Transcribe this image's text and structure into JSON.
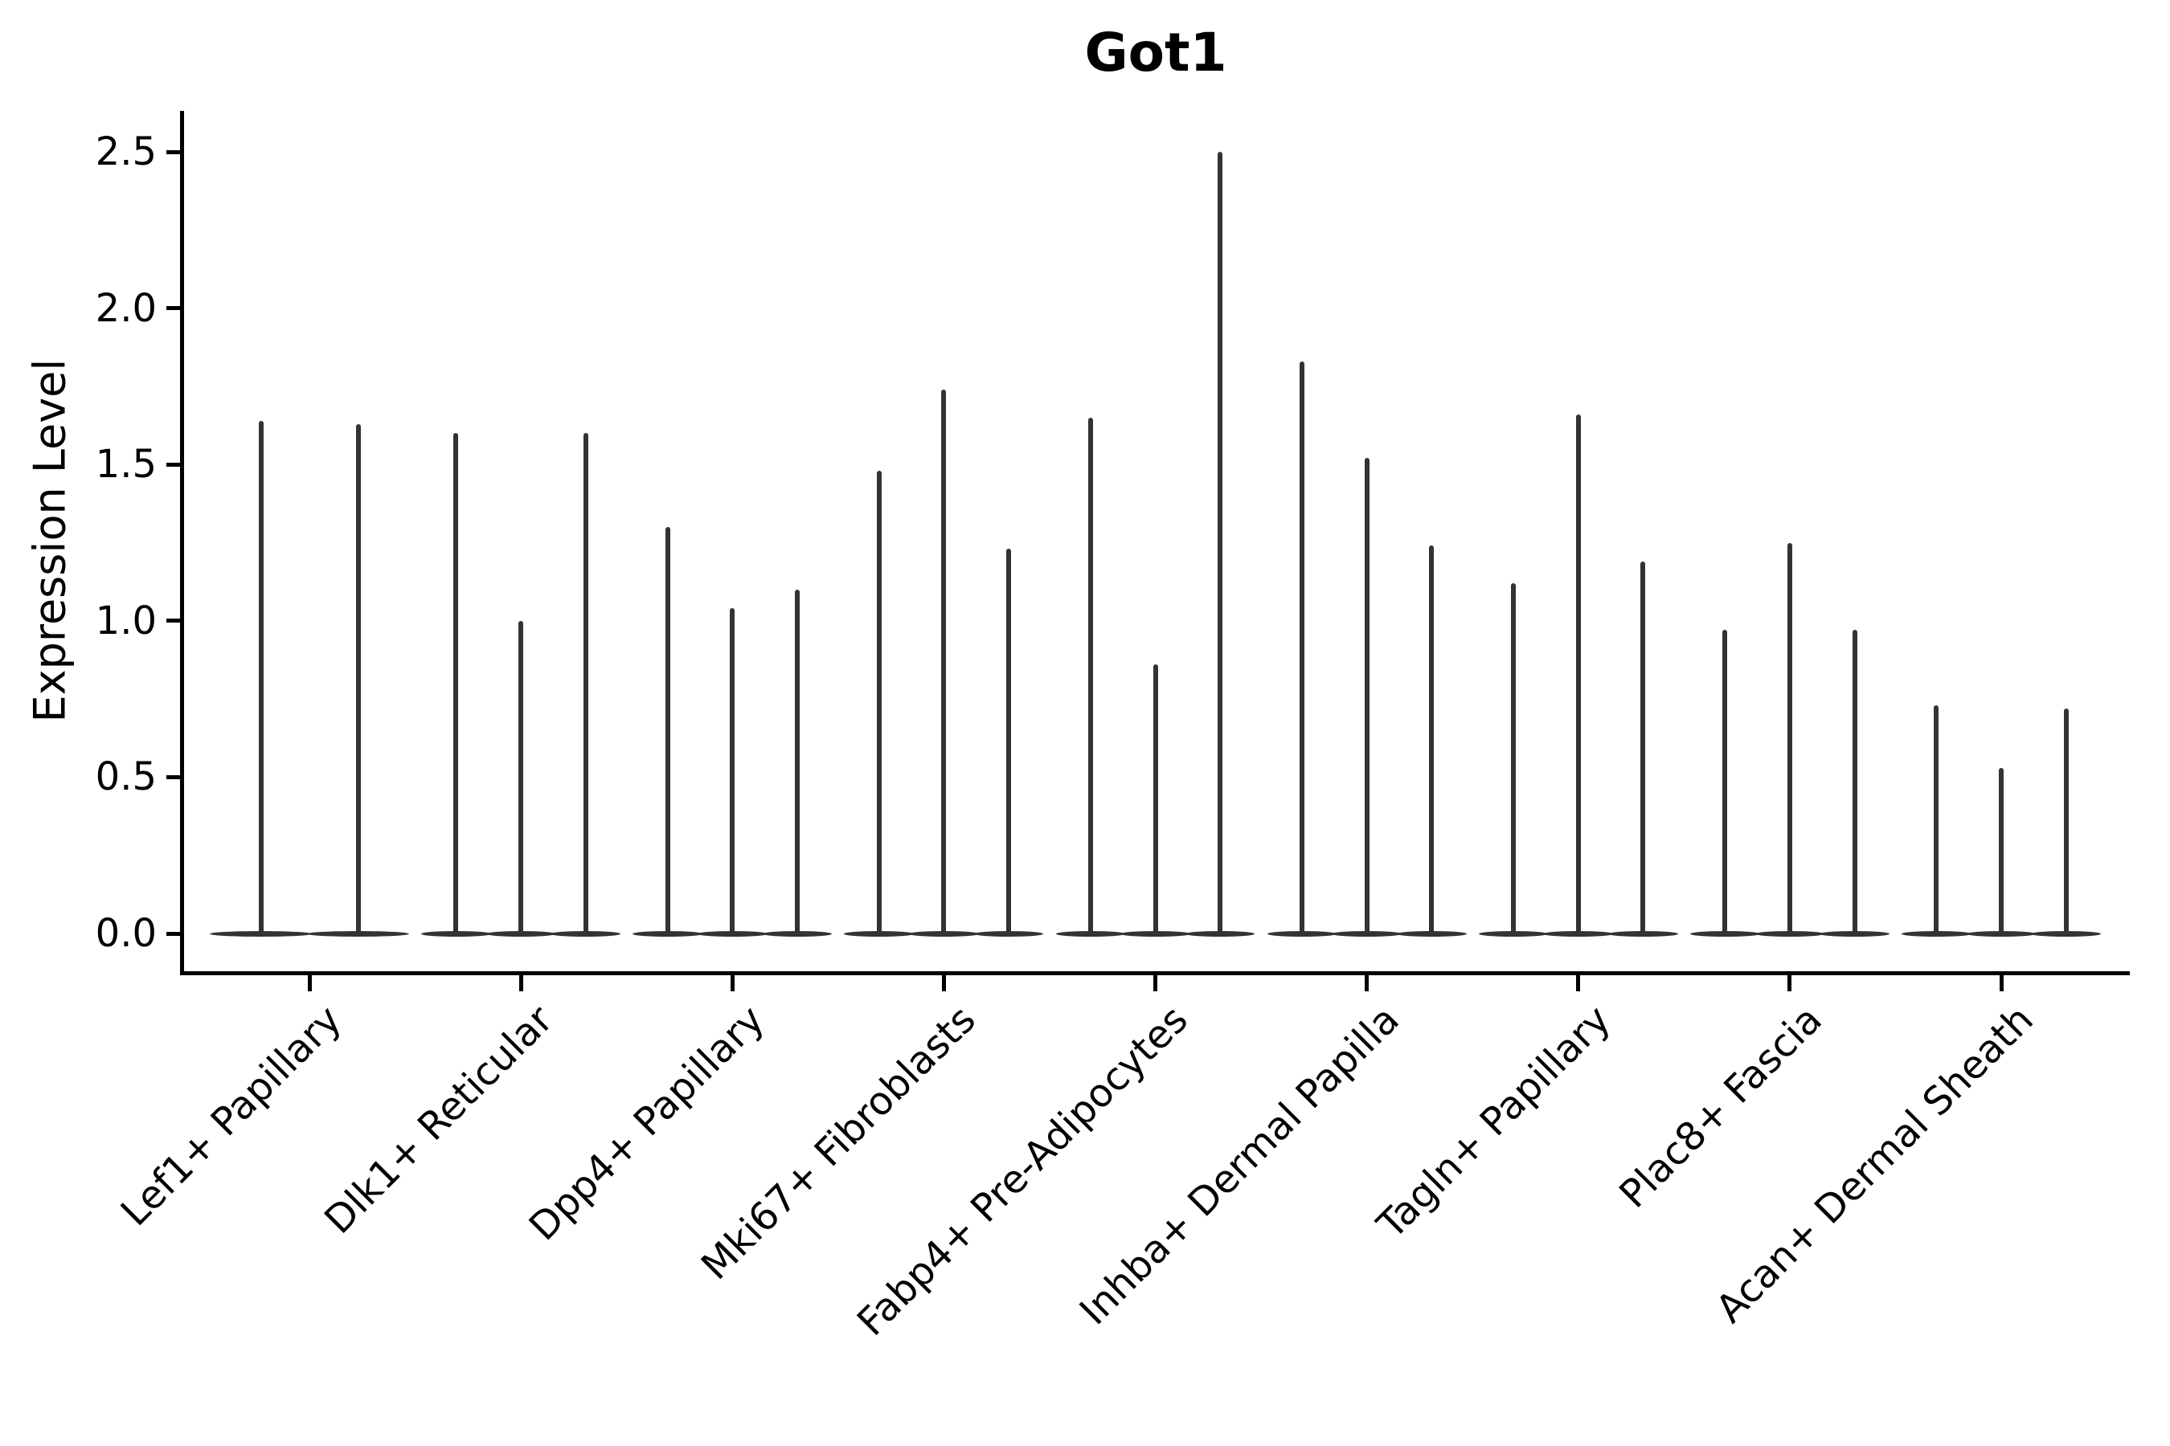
{
  "figure": {
    "title": "Got1",
    "ylabel": "Expression Level"
  },
  "chart_data": {
    "type": "violin",
    "title": "Got1",
    "xlabel": "",
    "ylabel": "Expression Level",
    "ylim": [
      -0.12,
      2.63
    ],
    "yticks": [
      "0.0",
      "0.5",
      "1.0",
      "1.5",
      "2.0",
      "2.5"
    ],
    "grid": false,
    "legend_position": "none",
    "background_color": "#ffffff",
    "spine_color": "#000000",
    "violin_color": "#333333",
    "categories": [
      "Lef1+ Papillary",
      "Dlk1+ Reticular",
      "Dpp4+ Papillary",
      "Mki67+ Fibroblasts",
      "Fabp4+ Pre-Adipocytes",
      "Inhba+ Dermal Papilla",
      "Tagln+ Papillary",
      "Plac8+ Fascia",
      "Acan+ Dermal Sheath"
    ],
    "baseline_value": 0.0,
    "groups": [
      {
        "category": "Lef1+ Papillary",
        "violin_max_values": [
          1.64,
          1.63
        ]
      },
      {
        "category": "Dlk1+ Reticular",
        "violin_max_values": [
          1.6,
          1.0,
          1.6
        ]
      },
      {
        "category": "Dpp4+ Papillary",
        "violin_max_values": [
          1.3,
          1.04,
          1.1
        ]
      },
      {
        "category": "Mki67+ Fibroblasts",
        "violin_max_values": [
          1.48,
          1.74,
          1.23
        ]
      },
      {
        "category": "Fabp4+ Pre-Adipocytes",
        "violin_max_values": [
          1.65,
          0.86,
          2.5
        ]
      },
      {
        "category": "Inhba+ Dermal Papilla",
        "violin_max_values": [
          1.83,
          1.52,
          1.24
        ]
      },
      {
        "category": "Tagln+ Papillary",
        "violin_max_values": [
          1.12,
          1.66,
          1.19
        ]
      },
      {
        "category": "Plac8+ Fascia",
        "violin_max_values": [
          0.97,
          1.25,
          0.97
        ]
      },
      {
        "category": "Acan+ Dermal Sheath",
        "violin_max_values": [
          0.73,
          0.53,
          0.72
        ]
      }
    ]
  }
}
